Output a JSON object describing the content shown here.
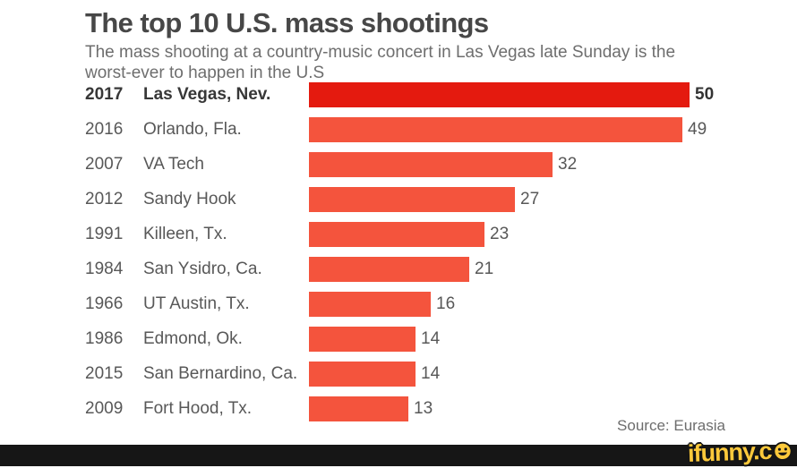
{
  "header": {
    "title": "The top 10 U.S. mass shootings",
    "subtitle": "The mass shooting at a country-music concert in Las Vegas late Sunday is the worst-ever to happen in the U.S"
  },
  "chart_data": {
    "type": "bar",
    "orientation": "horizontal",
    "title": "The top 10 U.S. mass shootings",
    "rows": [
      {
        "year": "2017",
        "location": "Las Vegas, Nev.",
        "value": 50,
        "highlight": true
      },
      {
        "year": "2016",
        "location": "Orlando, Fla.",
        "value": 49,
        "highlight": false
      },
      {
        "year": "2007",
        "location": "VA Tech",
        "value": 32,
        "highlight": false
      },
      {
        "year": "2012",
        "location": "Sandy Hook",
        "value": 27,
        "highlight": false
      },
      {
        "year": "1991",
        "location": "Killeen, Tx.",
        "value": 23,
        "highlight": false
      },
      {
        "year": "1984",
        "location": "San Ysidro, Ca.",
        "value": 21,
        "highlight": false
      },
      {
        "year": "1966",
        "location": "UT Austin, Tx.",
        "value": 16,
        "highlight": false
      },
      {
        "year": "1986",
        "location": "Edmond, Ok.",
        "value": 14,
        "highlight": false
      },
      {
        "year": "2015",
        "location": "San Bernardino, Ca.",
        "value": 14,
        "highlight": false
      },
      {
        "year": "2009",
        "location": "Fort Hood, Tx.",
        "value": 13,
        "highlight": false
      }
    ],
    "xlim": [
      0,
      50
    ],
    "value_labels": true,
    "grid": false,
    "legend": false,
    "bar_colors": {
      "highlight": "#e41a0f",
      "normal": "#f4543d"
    }
  },
  "footer": {
    "source": "Source: Eurasia"
  },
  "watermark": {
    "text": "ifunny.c",
    "smiley_icon": "smiley-face",
    "color": "#fdc93b",
    "bar_color": "#161616"
  }
}
